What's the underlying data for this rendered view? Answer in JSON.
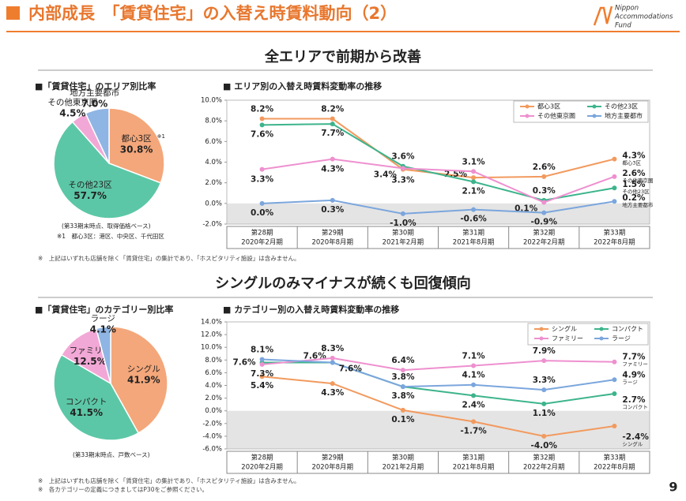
{
  "header": {
    "title": "内部成長　「賃貸住宅」の入替え時賃料動向（2）",
    "logo": [
      "Nippon",
      "Accommodations",
      "Fund"
    ]
  },
  "section1_heading": "全エリアで前期から改善",
  "section1_footnote": "※　上記はいずれも店舗を除く「賃貸住宅」の集計であり、「ホスピタリティ施設」は含みません。",
  "section2_heading": "シングルのみマイナスが続くも回復傾向",
  "section2_footnotes": [
    "※　上記はいずれも店舗を除く「賃貸住宅」の集計であり、「ホスピタリティ施設」は含みません。",
    "※　各カテゴリーの定義につきましてはP30をご参照ください。"
  ],
  "page_number": "9",
  "chart_data": [
    {
      "type": "pie",
      "title": "■「賃貸住宅」のエリア別比率",
      "categories": [
        "都心3区",
        "その他23区",
        "その他東京圏",
        "地方主要都市"
      ],
      "category_notes": [
        "※1",
        null,
        null,
        null
      ],
      "values": [
        30.8,
        57.7,
        4.5,
        7.0
      ],
      "value_labels": [
        "30.8%",
        "57.7%",
        "4.5%",
        "7.0%"
      ],
      "colors": [
        "#f4a77a",
        "#5cc7a6",
        "#f2a8d6",
        "#8fb5e4"
      ],
      "notes": [
        "(第33期末時点、取得価格ベース)",
        "※1　都心3区：港区、中央区、千代田区"
      ]
    },
    {
      "type": "line",
      "title": "■ エリア別の入替え時賃料変動率の推移",
      "categories": [
        "第28期",
        "第29期",
        "第30期",
        "第31期",
        "第32期",
        "第33期"
      ],
      "category_sublabels": [
        "2020年2月期",
        "2020年8月期",
        "2021年2月期",
        "2021年8月期",
        "2022年2月期",
        "2022年8月期"
      ],
      "ylim": [
        -2,
        10
      ],
      "yticks": [
        {
          "value": -2,
          "label": "-2.0%"
        },
        {
          "value": 0,
          "label": "0.0%"
        },
        {
          "value": 2,
          "label": "2.0%"
        },
        {
          "value": 4,
          "label": "4.0%"
        },
        {
          "value": 6,
          "label": "6.0%"
        },
        {
          "value": 8,
          "label": "8.0%"
        },
        {
          "value": 10,
          "label": "10.0%"
        }
      ],
      "legend": "upper right",
      "series": [
        {
          "name": "都心3区",
          "color": "#f29a5e",
          "values": [
            8.2,
            8.2,
            3.3,
            2.5,
            2.6,
            4.3
          ],
          "value_labels": [
            "8.2%",
            "8.2%",
            "3.3%",
            "2.5%",
            "2.6%",
            "4.3%"
          ]
        },
        {
          "name": "その他23区",
          "color": "#3db48c",
          "values": [
            7.6,
            7.7,
            3.6,
            2.1,
            0.3,
            1.5
          ],
          "value_labels": [
            "7.6%",
            "7.7%",
            "3.6%",
            "2.1%",
            "0.3%",
            "1.5%"
          ]
        },
        {
          "name": "その他東京圏",
          "color": "#ee90cf",
          "values": [
            3.3,
            4.3,
            3.4,
            3.1,
            0.1,
            2.6
          ],
          "value_labels": [
            "3.3%",
            "4.3%",
            "3.4%",
            "3.1%",
            "0.1%",
            "2.6%"
          ]
        },
        {
          "name": "地方主要都市",
          "color": "#7ba6dd",
          "values": [
            0.0,
            0.3,
            -1.0,
            -0.6,
            -0.9,
            0.2
          ],
          "value_labels": [
            "0.0%",
            "0.3%",
            "-1.0%",
            "-0.6%",
            "-0.9%",
            "0.2%"
          ]
        }
      ]
    },
    {
      "type": "pie",
      "title": "■「賃貸住宅」のカテゴリー別比率",
      "categories": [
        "シングル",
        "コンパクト",
        "ファミリー",
        "ラージ"
      ],
      "values": [
        41.9,
        41.5,
        12.5,
        4.1
      ],
      "value_labels": [
        "41.9%",
        "41.5%",
        "12.5%",
        "4.1%"
      ],
      "colors": [
        "#f4a77a",
        "#5cc7a6",
        "#f2a8d6",
        "#8fb5e4"
      ],
      "notes": [
        "(第33期末時点、戸数ベース)"
      ]
    },
    {
      "type": "line",
      "title": "■ カテゴリー別の入替え時賃料変動率の推移",
      "categories": [
        "第28期",
        "第29期",
        "第30期",
        "第31期",
        "第32期",
        "第33期"
      ],
      "category_sublabels": [
        "2020年2月期",
        "2020年8月期",
        "2021年2月期",
        "2021年8月期",
        "2022年2月期",
        "2022年8月期"
      ],
      "ylim": [
        -6,
        14
      ],
      "yticks": [
        {
          "value": -6,
          "label": "-6.0%"
        },
        {
          "value": -4,
          "label": "-4.0%"
        },
        {
          "value": -2,
          "label": "-2.0%"
        },
        {
          "value": 0,
          "label": "0.0%"
        },
        {
          "value": 2,
          "label": "2.0%"
        },
        {
          "value": 4,
          "label": "4.0%"
        },
        {
          "value": 6,
          "label": "6.0%"
        },
        {
          "value": 8,
          "label": "8.0%"
        },
        {
          "value": 10,
          "label": "10.0%"
        },
        {
          "value": 12,
          "label": "12.0%"
        },
        {
          "value": 14,
          "label": "14.0%"
        }
      ],
      "legend": "upper right",
      "series": [
        {
          "name": "シングル",
          "color": "#f29a5e",
          "values": [
            5.4,
            4.3,
            0.1,
            -1.7,
            -4.0,
            -2.4
          ],
          "value_labels": [
            "5.4%",
            "4.3%",
            "0.1%",
            "-1.7%",
            "-4.0%",
            "-2.4%"
          ]
        },
        {
          "name": "コンパクト",
          "color": "#3db48c",
          "values": [
            7.6,
            7.6,
            3.8,
            2.4,
            1.1,
            2.7
          ],
          "value_labels": [
            "7.6%",
            "7.6%",
            "3.8%",
            "2.4%",
            "1.1%",
            "2.7%"
          ]
        },
        {
          "name": "ファミリー",
          "color": "#ee90cf",
          "values": [
            7.3,
            8.3,
            6.4,
            7.1,
            7.9,
            7.7
          ],
          "value_labels": [
            "7.3%",
            "8.3%",
            "6.4%",
            "7.1%",
            "7.9%",
            "7.7%"
          ]
        },
        {
          "name": "ラージ",
          "color": "#7ba6dd",
          "values": [
            8.1,
            7.6,
            3.8,
            4.1,
            3.3,
            4.9
          ],
          "value_labels": [
            "8.1%",
            "7.6%",
            "3.8%",
            "4.1%",
            "3.3%",
            "4.9%"
          ]
        }
      ]
    }
  ]
}
